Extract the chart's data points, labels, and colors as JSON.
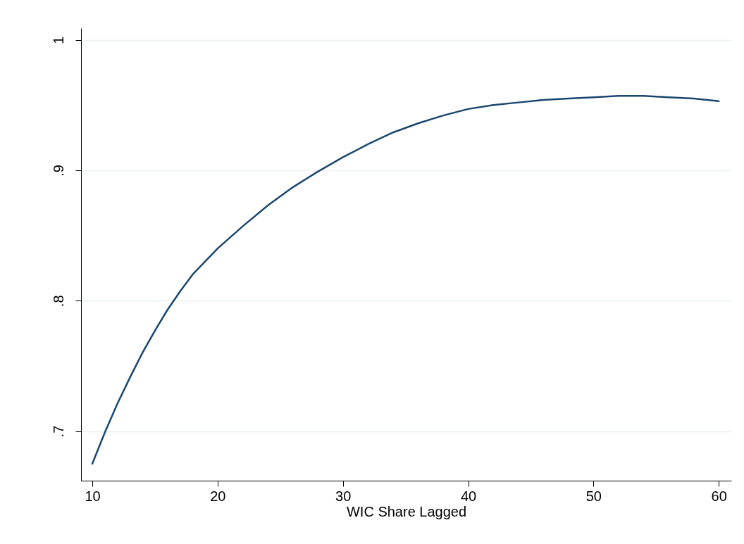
{
  "chart_data": {
    "type": "line",
    "xlabel": "WIC Share Lagged",
    "x": [
      10,
      11,
      12,
      13,
      14,
      15,
      16,
      17,
      18,
      20,
      22,
      24,
      26,
      28,
      30,
      32,
      34,
      36,
      38,
      40,
      42,
      44,
      46,
      48,
      50,
      52,
      54,
      56,
      58,
      60
    ],
    "series": [
      {
        "color": "#1a476f",
        "values": [
          0.675,
          0.699,
          0.721,
          0.741,
          0.76,
          0.777,
          0.793,
          0.807,
          0.82,
          0.84,
          0.857,
          0.873,
          0.887,
          0.899,
          0.91,
          0.92,
          0.929,
          0.936,
          0.942,
          0.947,
          0.95,
          0.952,
          0.954,
          0.955,
          0.956,
          0.957,
          0.957,
          0.956,
          0.955,
          0.953
        ]
      }
    ],
    "xlim": [
      9.1,
      61
    ],
    "xticks": [
      10,
      20,
      30,
      40,
      50,
      60
    ],
    "ylim": [
      0.662,
      1.009
    ],
    "yticks": [
      {
        "value": 0.7,
        "label": ".7"
      },
      {
        "value": 0.8,
        "label": ".8"
      },
      {
        "value": 0.9,
        "label": ".9"
      },
      1
    ],
    "grid": "y",
    "marker": "none",
    "line_style": "solid"
  }
}
